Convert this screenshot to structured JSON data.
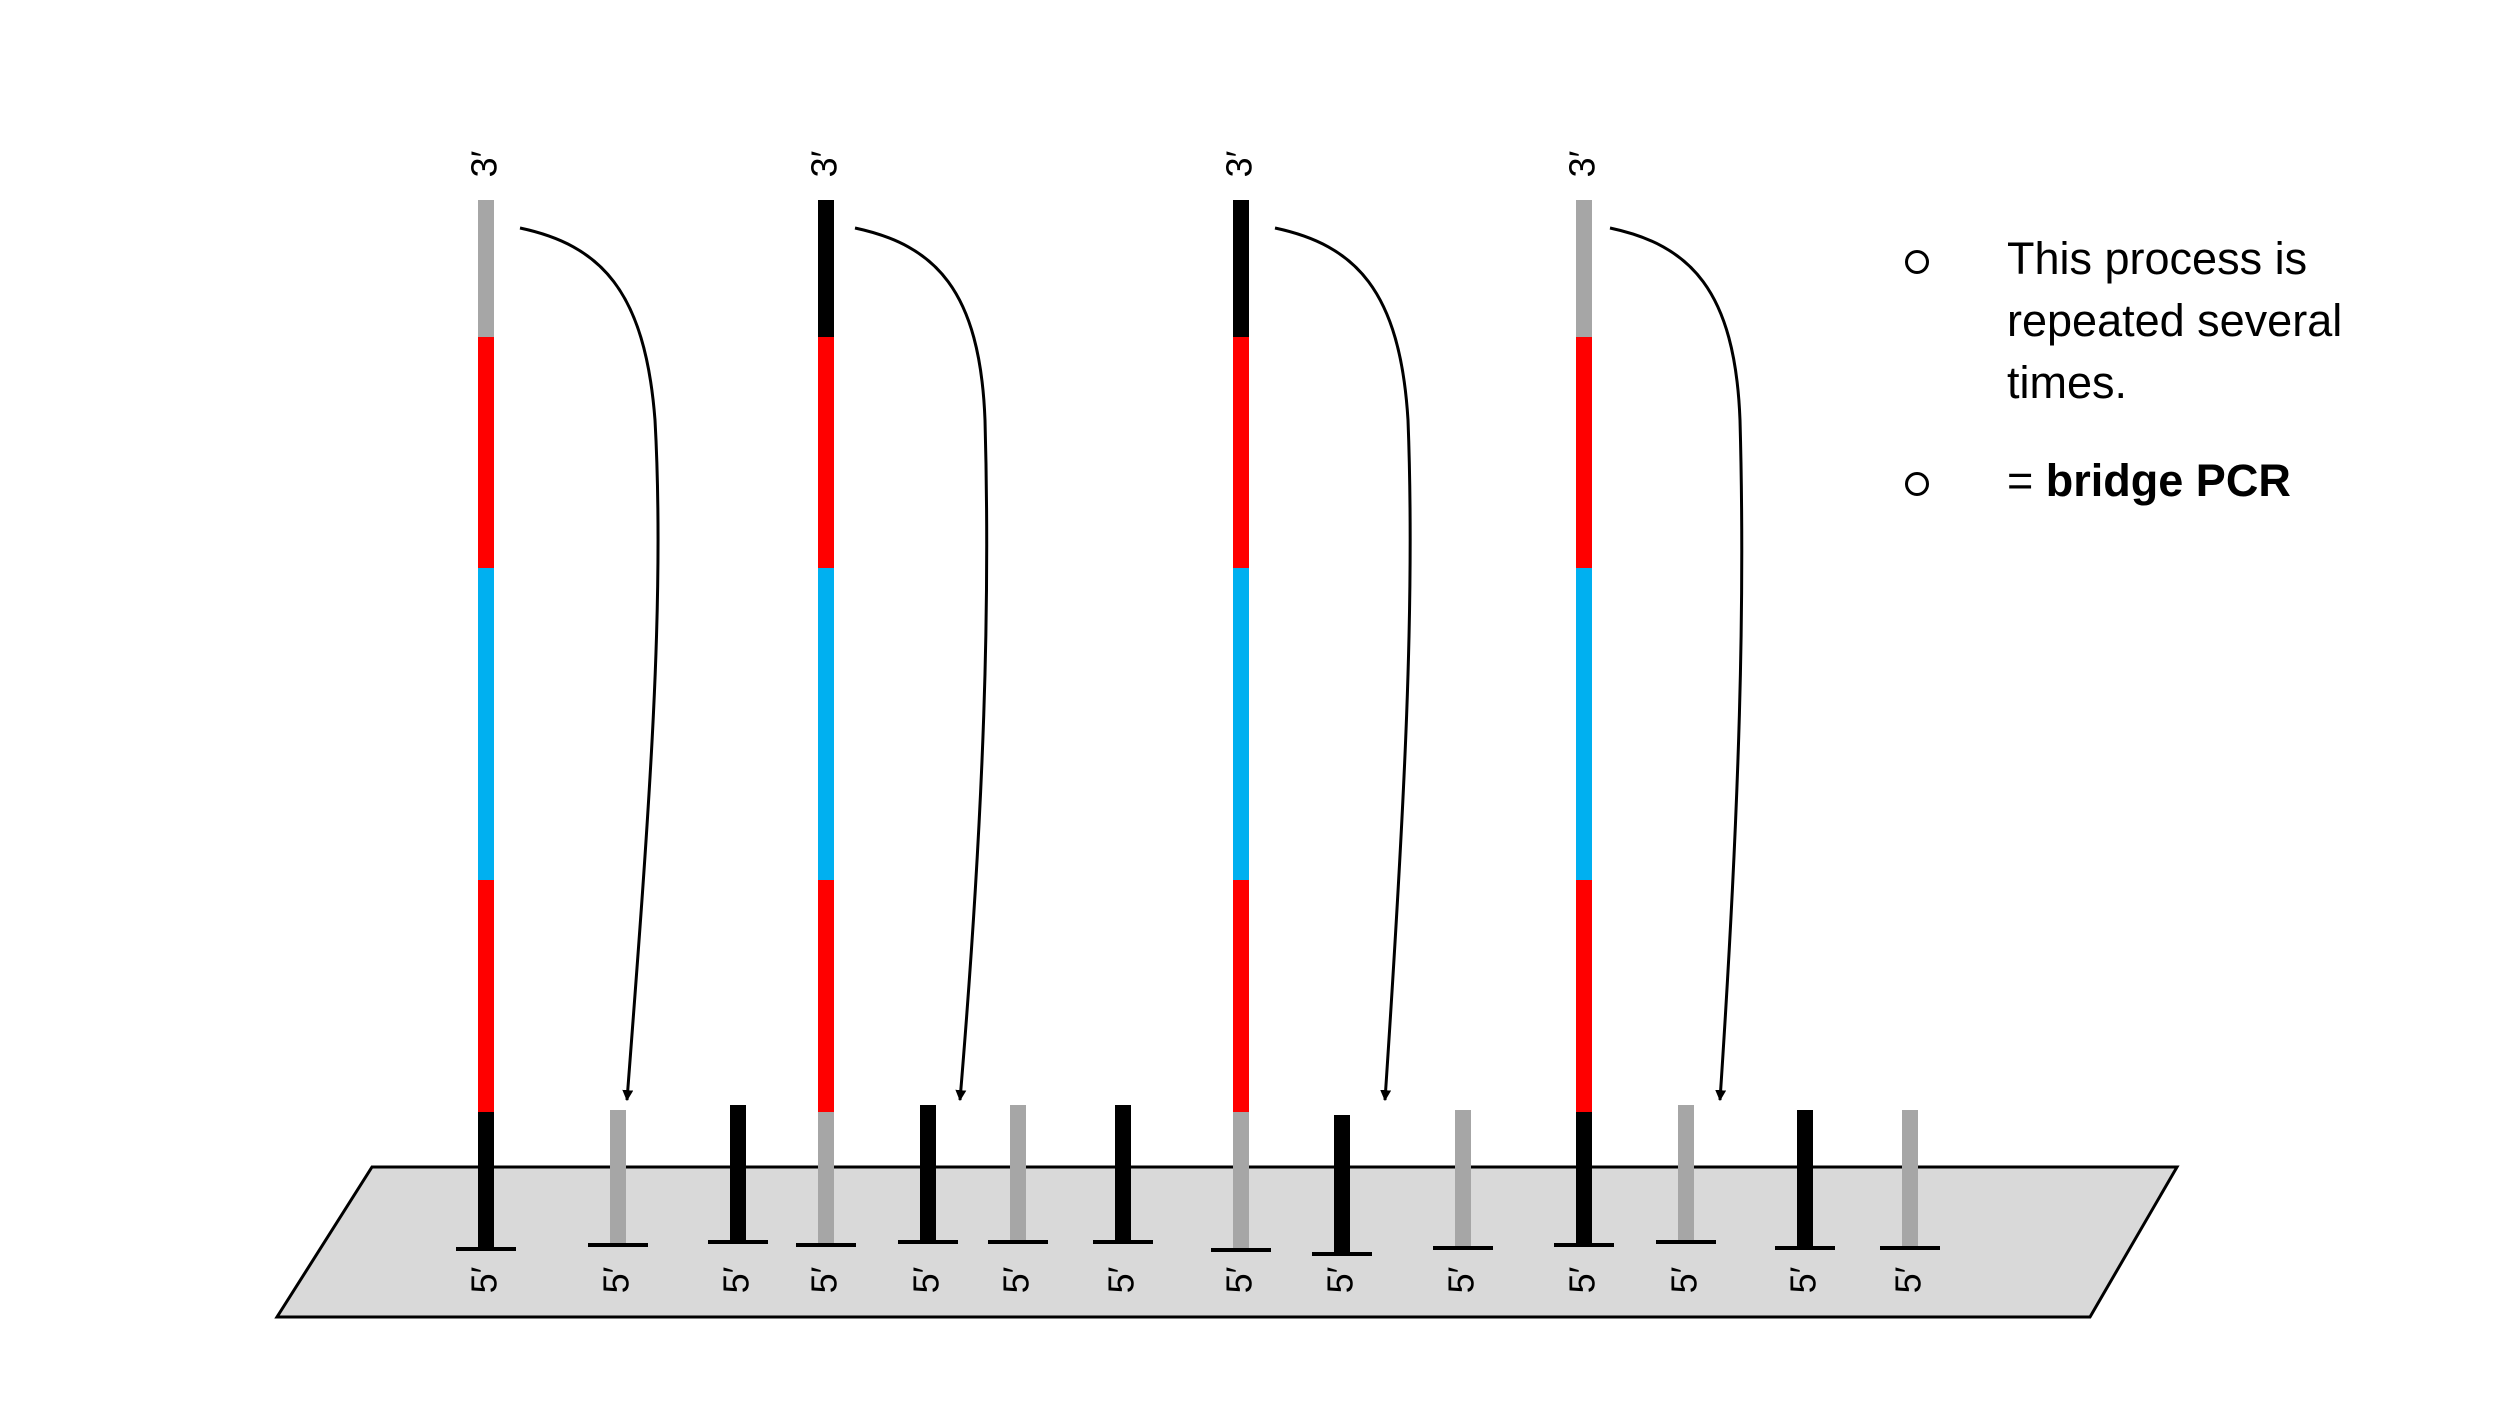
{
  "colors": {
    "surface": "#d9d9d9",
    "black": "#000000",
    "gray": "#a6a6a6",
    "red": "#ff0000",
    "blue": "#00b0f0"
  },
  "labels": {
    "three_prime": "3′",
    "five_prime": "5′"
  },
  "strands": [
    {
      "segments": [
        "gray",
        "red",
        "blue",
        "red",
        "black"
      ]
    },
    {
      "segments": [
        "black",
        "red",
        "blue",
        "red",
        "gray"
      ]
    },
    {
      "segments": [
        "black",
        "red",
        "blue",
        "red",
        "gray"
      ]
    },
    {
      "segments": [
        "gray",
        "red",
        "blue",
        "red",
        "black"
      ]
    }
  ],
  "primers": [
    "gray",
    "black",
    "black",
    "gray",
    "black",
    "black",
    "gray",
    "gray",
    "black",
    "gray"
  ],
  "bullets": [
    {
      "text": "This process is repeated several times."
    },
    {
      "prefix": "= ",
      "bold": "bridge PCR"
    }
  ]
}
